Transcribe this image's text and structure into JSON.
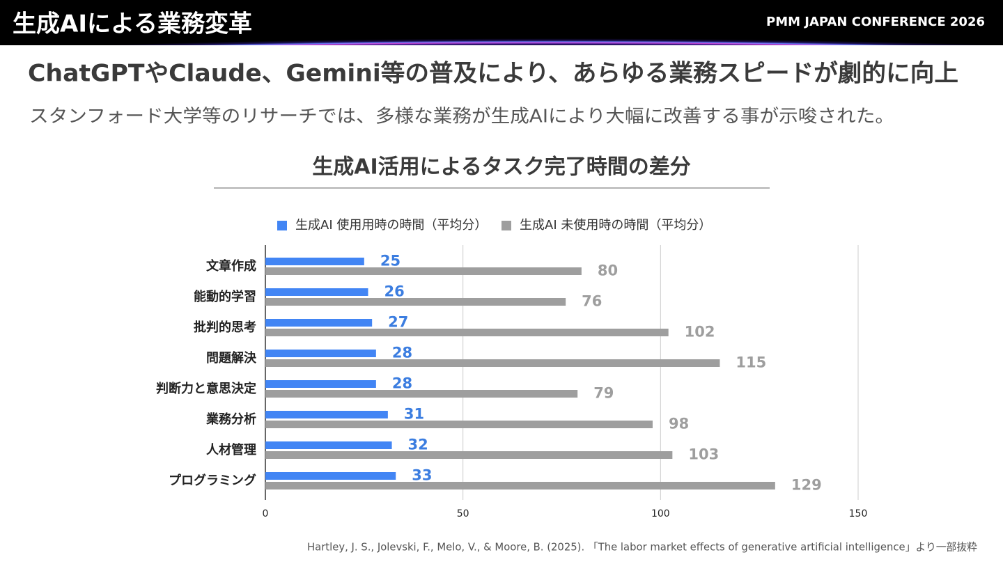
{
  "header": {
    "title": "生成AIによる業務変革",
    "event": "PMM JAPAN CONFERENCE 2026"
  },
  "headline": "ChatGPTやClaude、Gemini等の普及により、あらゆる業務スピードが劇的に向上",
  "subtitle": "スタンフォード大学等のリサーチでは、多様な業務が生成AIにより大幅に改善する事が示唆された。",
  "chart_data": {
    "type": "hbar",
    "title": "生成AI活用によるタスク完了時間の差分",
    "categories": [
      "文章作成",
      "能動的学習",
      "批判的思考",
      "問題解決",
      "判断力と意思決定",
      "業務分析",
      "人材管理",
      "プログラミング"
    ],
    "series": [
      {
        "name": "生成AI 使用用時の時間（平均分）",
        "color": "#4285f4",
        "label_color": "#3b7de0",
        "values": [
          25,
          26,
          27,
          28,
          28,
          31,
          32,
          33
        ]
      },
      {
        "name": "生成AI 未使用時の時間（平均分）",
        "color": "#9e9e9e",
        "label_color": "#9e9e9e",
        "values": [
          80,
          76,
          102,
          115,
          79,
          98,
          103,
          129
        ]
      }
    ],
    "xlim": [
      0,
      150
    ],
    "xticks": [
      0,
      50,
      100,
      150
    ],
    "grid": true
  },
  "citation": "Hartley, J. S., Jolevski, F., Melo, V., & Moore, B. (2025). 「The labor market effects of generative artificial intelligence」より一部抜粋"
}
